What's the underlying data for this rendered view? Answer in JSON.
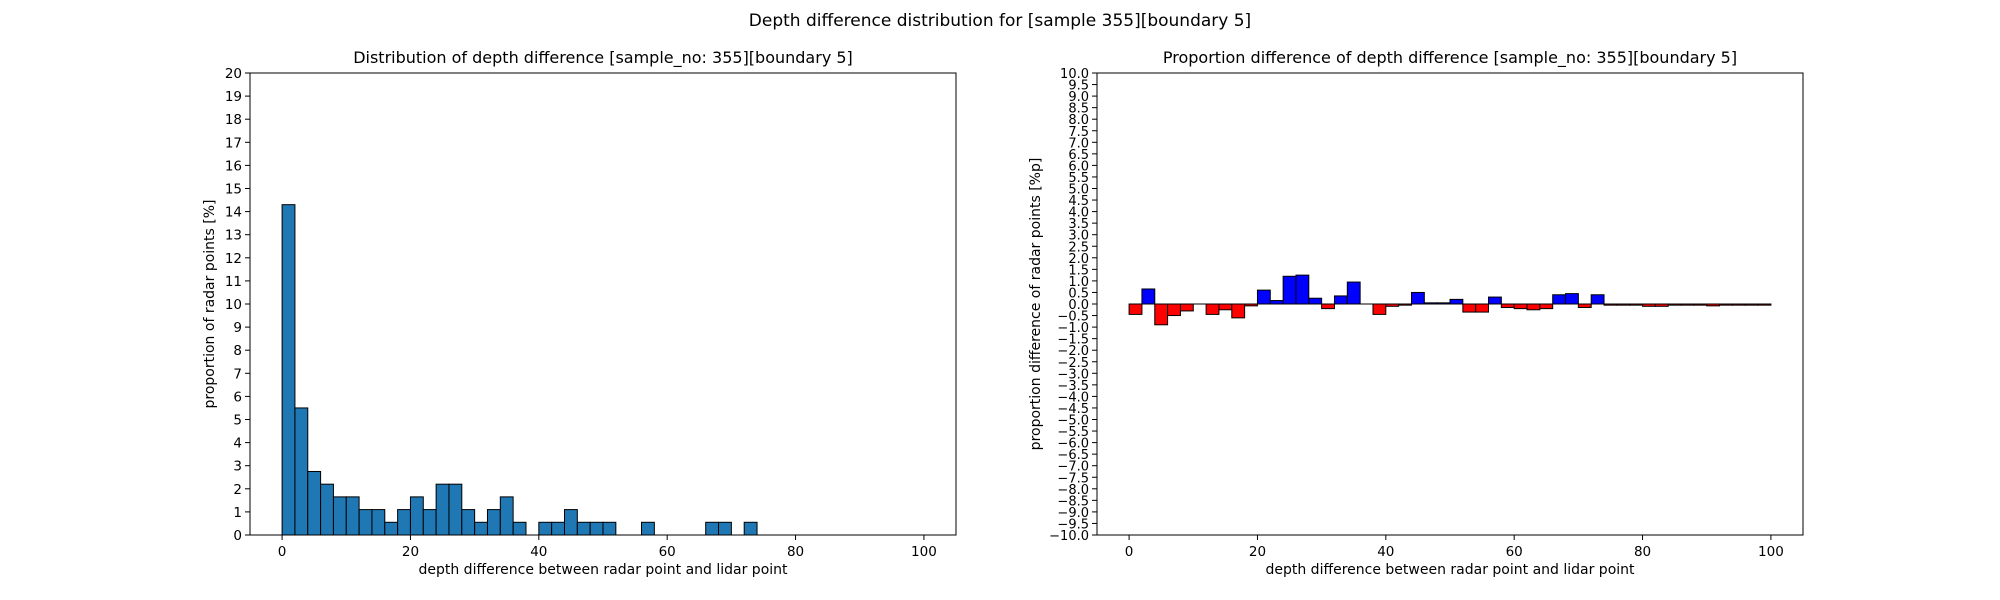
{
  "figure": {
    "suptitle": "Depth difference distribution for [sample 355][boundary 5]"
  },
  "chart_data": [
    {
      "type": "bar",
      "title": "Distribution of depth difference [sample_no: 355][boundary 5]",
      "xlabel": "depth difference between radar point and lidar point",
      "ylabel": "proportion of radar points [%]",
      "xlim": [
        -5,
        105
      ],
      "ylim": [
        0,
        20
      ],
      "x_ticks": [
        0,
        20,
        40,
        60,
        80,
        100
      ],
      "y_ticks": [
        0,
        1,
        2,
        3,
        4,
        5,
        6,
        7,
        8,
        9,
        10,
        11,
        12,
        13,
        14,
        15,
        16,
        17,
        18,
        19,
        20
      ],
      "bin_width": 2,
      "bin_starts": [
        0,
        2,
        4,
        6,
        8,
        10,
        12,
        14,
        16,
        18,
        20,
        22,
        24,
        26,
        28,
        30,
        32,
        34,
        36,
        38,
        40,
        42,
        44,
        46,
        48,
        50,
        52,
        54,
        56,
        58,
        60,
        62,
        64,
        66,
        68,
        70,
        72,
        74,
        76,
        78,
        80,
        82,
        84,
        86,
        88,
        90,
        92,
        94,
        96,
        98
      ],
      "values": [
        14.3,
        5.5,
        2.75,
        2.2,
        1.65,
        1.65,
        1.1,
        1.1,
        0.55,
        1.1,
        1.65,
        1.1,
        2.2,
        2.2,
        1.1,
        0.55,
        1.1,
        1.65,
        0.55,
        0,
        0.55,
        0.55,
        1.1,
        0.55,
        0.55,
        0.55,
        0,
        0,
        0.55,
        0,
        0,
        0,
        0,
        0.55,
        0.55,
        0,
        0.55,
        0,
        0,
        0,
        0,
        0,
        0,
        0,
        0,
        0,
        0,
        0,
        0,
        0
      ],
      "bar_color": "#1f77b4",
      "edge_color": "#000000",
      "grid": false
    },
    {
      "type": "bar",
      "title": "Proportion difference of depth difference [sample_no: 355][boundary 5]",
      "xlabel": "depth difference between radar point and lidar point",
      "ylabel": "proportion difference of radar points [%p]",
      "xlim": [
        -5,
        105
      ],
      "ylim": [
        -10,
        10
      ],
      "x_ticks": [
        0,
        20,
        40,
        60,
        80,
        100
      ],
      "y_ticks": [
        -10.0,
        -9.5,
        -9.0,
        -8.5,
        -8.0,
        -7.5,
        -7.0,
        -6.5,
        -6.0,
        -5.5,
        -5.0,
        -4.5,
        -4.0,
        -3.5,
        -3.0,
        -2.5,
        -2.0,
        -1.5,
        -1.0,
        -0.5,
        0.0,
        0.5,
        1.0,
        1.5,
        2.0,
        2.5,
        3.0,
        3.5,
        4.0,
        4.5,
        5.0,
        5.5,
        6.0,
        6.5,
        7.0,
        7.5,
        8.0,
        8.5,
        9.0,
        9.5,
        10.0
      ],
      "bin_width": 2,
      "bin_starts": [
        0,
        2,
        4,
        6,
        8,
        10,
        12,
        14,
        16,
        18,
        20,
        22,
        24,
        26,
        28,
        30,
        32,
        34,
        36,
        38,
        40,
        42,
        44,
        46,
        48,
        50,
        52,
        54,
        56,
        58,
        60,
        62,
        64,
        66,
        68,
        70,
        72,
        74,
        76,
        78,
        80,
        82,
        84,
        86,
        88,
        90,
        92,
        94,
        96,
        98
      ],
      "values": [
        -0.45,
        0.65,
        -0.9,
        -0.5,
        -0.3,
        0,
        -0.45,
        -0.25,
        -0.6,
        -0.08,
        0.6,
        0.15,
        1.2,
        1.25,
        0.25,
        -0.2,
        0.35,
        0.95,
        0,
        -0.45,
        -0.1,
        -0.05,
        0.5,
        0.05,
        0.05,
        0.2,
        -0.35,
        -0.35,
        0.3,
        -0.15,
        -0.2,
        -0.25,
        -0.2,
        0.4,
        0.45,
        -0.15,
        0.4,
        -0.05,
        -0.05,
        -0.05,
        -0.1,
        -0.1,
        -0.05,
        -0.05,
        -0.05,
        -0.08,
        -0.05,
        -0.05,
        -0.05,
        -0.05
      ],
      "positive_color": "#0000ff",
      "negative_color": "#ff0000",
      "edge_color": "#000000",
      "grid": false
    }
  ]
}
